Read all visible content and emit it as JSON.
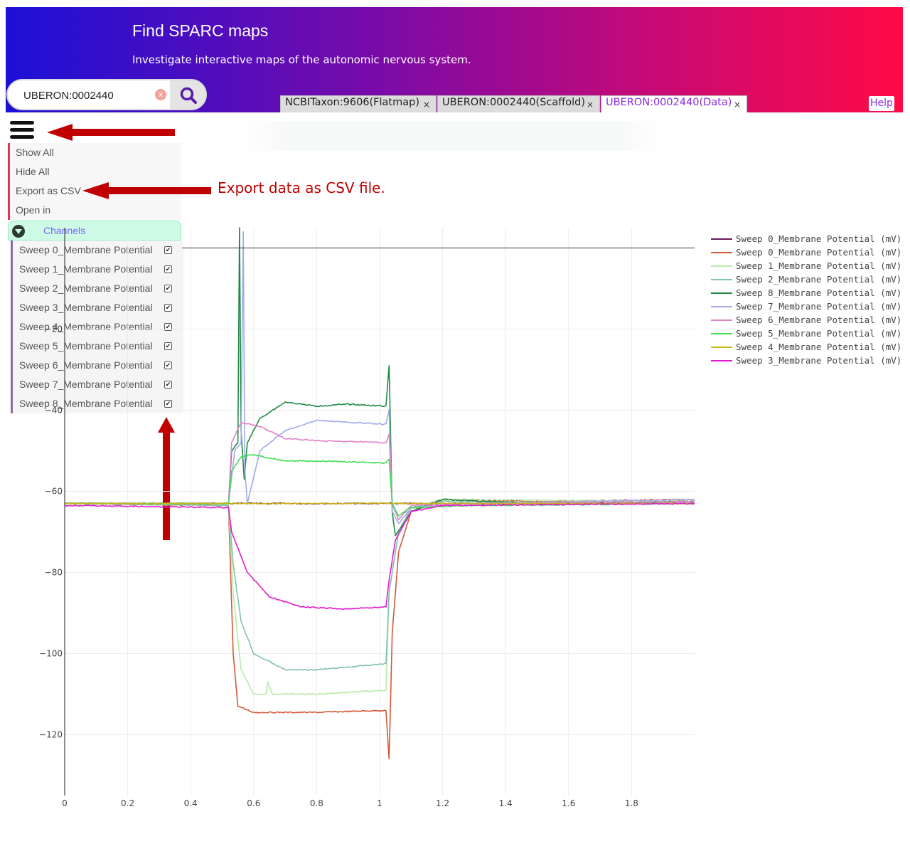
{
  "header": {
    "title": "Find SPARC maps",
    "subtitle": "Investigate interactive maps of the autonomic nervous system.",
    "gradient": [
      "#1c10d6",
      "#7a0ba8",
      "#c70a76",
      "#ff0a46"
    ]
  },
  "search": {
    "value": "UBERON:0002440",
    "clear_icon": "clear-icon",
    "search_icon": "search-icon"
  },
  "tabs": [
    {
      "label": "NCBITaxon:9606(Flatmap)",
      "active": false
    },
    {
      "label": "UBERON:0002440(Scaffold)",
      "active": false
    },
    {
      "label": "UBERON:0002440(Data)",
      "active": true
    }
  ],
  "tab_close_glyph": "×",
  "help_label": "Help",
  "menu": {
    "icon": "hamburger-icon",
    "items": [
      "Show All",
      "Hide All",
      "Export as CSV",
      "Open in"
    ]
  },
  "channels": {
    "header": "Channels",
    "items": [
      "Sweep 0_Membrane Potential",
      "Sweep 1_Membrane Potential",
      "Sweep 2_Membrane Potential",
      "Sweep 3_Membrane Potential",
      "Sweep 4_Membrane Potential",
      "Sweep 5_Membrane Potential",
      "Sweep 6_Membrane Potential",
      "Sweep 7_Membrane Potential",
      "Sweep 8_Membrane Potential"
    ],
    "checked": true
  },
  "annotation": {
    "text": "Export data as CSV file.",
    "color": "#c00000"
  },
  "chart_data": {
    "type": "line",
    "title": "",
    "xlabel": "",
    "ylabel": "",
    "xlim": [
      0,
      2.0
    ],
    "ylim": [
      -135,
      5
    ],
    "x_ticks": [
      0,
      0.2,
      0.4,
      0.6,
      0.8,
      1,
      1.2,
      1.4,
      1.6,
      1.8
    ],
    "x_tick_labels": [
      "0",
      "0.2",
      "0.4",
      "0.6",
      "0.8",
      "1",
      "1.2",
      "1.4",
      "1.6",
      "1.8"
    ],
    "y_ticks": [
      -120,
      -100,
      -80,
      -60,
      -40,
      -20
    ],
    "y_tick_labels": [
      "−120",
      "−100",
      "−80",
      "−60",
      "−40",
      "−20"
    ],
    "zero_line": 0,
    "grid": true,
    "legend_position": "top-right",
    "series": [
      {
        "name": "Sweep 0_Membrane Potential (mV)",
        "color": "#6b1a5e",
        "points": [
          [
            0,
            -63
          ],
          [
            0.52,
            -63
          ],
          [
            2.0,
            -63
          ]
        ]
      },
      {
        "name": "Sweep 0_Membrane Potential (mV)",
        "color": "#d45838",
        "points": [
          [
            0,
            -63
          ],
          [
            0.52,
            -63.5
          ],
          [
            0.535,
            -100
          ],
          [
            0.55,
            -113
          ],
          [
            0.6,
            -114.5
          ],
          [
            0.8,
            -114.5
          ],
          [
            1.02,
            -114
          ],
          [
            1.03,
            -126
          ],
          [
            1.04,
            -95
          ],
          [
            1.06,
            -75
          ],
          [
            1.1,
            -65
          ],
          [
            1.2,
            -62
          ],
          [
            1.5,
            -62.5
          ],
          [
            2.0,
            -62
          ]
        ]
      },
      {
        "name": "Sweep 1_Membrane Potential (mV)",
        "color": "#b9e9a7",
        "points": [
          [
            0,
            -63
          ],
          [
            0.52,
            -63.5
          ],
          [
            0.535,
            -85
          ],
          [
            0.56,
            -104
          ],
          [
            0.6,
            -110
          ],
          [
            0.64,
            -110
          ],
          [
            0.645,
            -107
          ],
          [
            0.66,
            -110
          ],
          [
            0.8,
            -110
          ],
          [
            1.02,
            -109
          ],
          [
            1.03,
            -85
          ],
          [
            1.06,
            -70
          ],
          [
            1.1,
            -64
          ],
          [
            1.2,
            -62
          ],
          [
            2.0,
            -62.5
          ]
        ]
      },
      {
        "name": "Sweep 2_Membrane Potential (mV)",
        "color": "#82c2ae",
        "points": [
          [
            0,
            -63
          ],
          [
            0.52,
            -63.5
          ],
          [
            0.535,
            -78
          ],
          [
            0.56,
            -92
          ],
          [
            0.6,
            -100
          ],
          [
            0.7,
            -104
          ],
          [
            0.8,
            -104
          ],
          [
            1.02,
            -102.5
          ],
          [
            1.03,
            -85
          ],
          [
            1.06,
            -70
          ],
          [
            1.1,
            -64
          ],
          [
            1.2,
            -62.5
          ],
          [
            2.0,
            -63
          ]
        ]
      },
      {
        "name": "Sweep 8_Membrane Potential (mV)",
        "color": "#1e8a44",
        "points": [
          [
            0,
            -63
          ],
          [
            0.52,
            -63
          ],
          [
            0.53,
            -50
          ],
          [
            0.55,
            -48
          ],
          [
            0.555,
            5
          ],
          [
            0.56,
            -45
          ],
          [
            0.57,
            -57
          ],
          [
            0.58,
            -48
          ],
          [
            0.62,
            -42
          ],
          [
            0.7,
            -38
          ],
          [
            0.8,
            -39
          ],
          [
            0.9,
            -38.5
          ],
          [
            1.02,
            -39
          ],
          [
            1.03,
            -29
          ],
          [
            1.04,
            -65
          ],
          [
            1.05,
            -71
          ],
          [
            1.1,
            -65
          ],
          [
            1.2,
            -62
          ],
          [
            1.5,
            -63
          ],
          [
            2.0,
            -62.5
          ]
        ]
      },
      {
        "name": "Sweep 7_Membrane Potential (mV)",
        "color": "#a2a9e8",
        "points": [
          [
            0,
            -63
          ],
          [
            0.52,
            -63
          ],
          [
            0.54,
            -50
          ],
          [
            0.56,
            -48
          ],
          [
            0.567,
            4
          ],
          [
            0.572,
            -55
          ],
          [
            0.58,
            -63
          ],
          [
            0.62,
            -50
          ],
          [
            0.7,
            -45
          ],
          [
            0.8,
            -42.5
          ],
          [
            1.02,
            -43.5
          ],
          [
            1.03,
            -40
          ],
          [
            1.04,
            -65
          ],
          [
            1.06,
            -68
          ],
          [
            1.1,
            -64
          ],
          [
            1.3,
            -63
          ],
          [
            2.0,
            -62
          ]
        ]
      },
      {
        "name": "Sweep 6_Membrane Potential (mV)",
        "color": "#e082c6",
        "points": [
          [
            0,
            -63
          ],
          [
            0.52,
            -63
          ],
          [
            0.53,
            -48
          ],
          [
            0.56,
            -43
          ],
          [
            0.62,
            -44
          ],
          [
            0.7,
            -47
          ],
          [
            0.8,
            -47.5
          ],
          [
            1.02,
            -48
          ],
          [
            1.03,
            -46
          ],
          [
            1.04,
            -63
          ],
          [
            1.06,
            -67
          ],
          [
            1.1,
            -63.5
          ],
          [
            1.3,
            -63
          ],
          [
            2.0,
            -62.5
          ]
        ]
      },
      {
        "name": "Sweep 5_Membrane Potential (mV)",
        "color": "#3ede52",
        "points": [
          [
            0,
            -63
          ],
          [
            0.52,
            -63
          ],
          [
            0.53,
            -55
          ],
          [
            0.56,
            -51.5
          ],
          [
            0.6,
            -51
          ],
          [
            0.7,
            -52.5
          ],
          [
            0.8,
            -52.5
          ],
          [
            1.02,
            -53
          ],
          [
            1.03,
            -52
          ],
          [
            1.04,
            -63
          ],
          [
            1.06,
            -66
          ],
          [
            1.1,
            -64
          ],
          [
            1.3,
            -63.5
          ],
          [
            2.0,
            -63
          ]
        ]
      },
      {
        "name": "Sweep 4_Membrane Potential (mV)",
        "color": "#c9b714",
        "points": [
          [
            0,
            -63
          ],
          [
            0.52,
            -63
          ],
          [
            1.02,
            -63
          ],
          [
            1.06,
            -63
          ],
          [
            2.0,
            -63
          ]
        ]
      },
      {
        "name": "Sweep 3_Membrane Potential (mV)",
        "color": "#e21ad1",
        "points": [
          [
            0,
            -63.5
          ],
          [
            0.52,
            -64
          ],
          [
            0.53,
            -70
          ],
          [
            0.58,
            -80
          ],
          [
            0.65,
            -86
          ],
          [
            0.75,
            -88.5
          ],
          [
            0.9,
            -89
          ],
          [
            1.02,
            -88.5
          ],
          [
            1.03,
            -82
          ],
          [
            1.05,
            -72
          ],
          [
            1.1,
            -65
          ],
          [
            1.2,
            -63.5
          ],
          [
            2.0,
            -63
          ]
        ]
      }
    ]
  }
}
